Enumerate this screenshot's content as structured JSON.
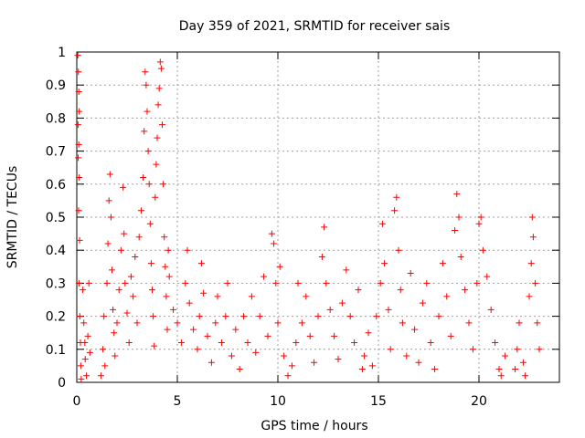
{
  "chart_data": {
    "type": "scatter",
    "title": "Day 359 of 2021, SRMTID for receiver sais",
    "xlabel": "GPS time / hours",
    "ylabel": "SRMTID / TECUs",
    "xlim": [
      0,
      24
    ],
    "ylim": [
      0,
      1
    ],
    "xticks": [
      0,
      5,
      10,
      15,
      20
    ],
    "xtick_labels": [
      "0",
      "5",
      "10",
      "15",
      "20"
    ],
    "yticks": [
      0,
      0.1,
      0.2,
      0.3,
      0.4,
      0.5,
      0.6,
      0.7,
      0.8,
      0.9,
      1
    ],
    "ytick_labels": [
      "0",
      "0.1",
      "0.2",
      "0.3",
      "0.4",
      "0.5",
      "0.6",
      "0.7",
      "0.8",
      "0.9",
      "1"
    ],
    "grid": true,
    "marker": "+",
    "color": "#ff0000",
    "series": [
      {
        "name": "SRMTID",
        "points": [
          [
            0.05,
            0.99
          ],
          [
            0.08,
            0.94
          ],
          [
            0.1,
            0.88
          ],
          [
            0.12,
            0.82
          ],
          [
            0.06,
            0.78
          ],
          [
            0.1,
            0.72
          ],
          [
            0.07,
            0.68
          ],
          [
            0.12,
            0.62
          ],
          [
            0.09,
            0.52
          ],
          [
            0.14,
            0.43
          ],
          [
            0.11,
            0.3
          ],
          [
            0.15,
            0.2
          ],
          [
            0.18,
            0.12
          ],
          [
            0.2,
            0.05
          ],
          [
            0.22,
            0.01
          ],
          [
            0.3,
            0.28
          ],
          [
            0.35,
            0.18
          ],
          [
            0.4,
            0.12
          ],
          [
            0.42,
            0.07
          ],
          [
            0.48,
            0.02
          ],
          [
            0.55,
            0.14
          ],
          [
            0.6,
            0.3
          ],
          [
            0.65,
            0.09
          ],
          [
            1.2,
            0.02
          ],
          [
            1.3,
            0.1
          ],
          [
            1.35,
            0.2
          ],
          [
            1.4,
            0.05
          ],
          [
            1.5,
            0.3
          ],
          [
            1.55,
            0.42
          ],
          [
            1.6,
            0.55
          ],
          [
            1.65,
            0.63
          ],
          [
            1.7,
            0.5
          ],
          [
            1.75,
            0.34
          ],
          [
            1.8,
            0.22
          ],
          [
            1.85,
            0.15
          ],
          [
            1.9,
            0.08
          ],
          [
            2.0,
            0.18
          ],
          [
            2.1,
            0.28
          ],
          [
            2.2,
            0.4
          ],
          [
            2.3,
            0.59
          ],
          [
            2.35,
            0.45
          ],
          [
            2.4,
            0.3
          ],
          [
            2.5,
            0.21
          ],
          [
            2.6,
            0.12
          ],
          [
            2.7,
            0.32
          ],
          [
            2.8,
            0.26
          ],
          [
            2.9,
            0.38
          ],
          [
            3.0,
            0.18
          ],
          [
            3.1,
            0.44
          ],
          [
            3.2,
            0.52
          ],
          [
            3.3,
            0.62
          ],
          [
            3.35,
            0.76
          ],
          [
            3.4,
            0.94
          ],
          [
            3.45,
            0.9
          ],
          [
            3.5,
            0.82
          ],
          [
            3.55,
            0.7
          ],
          [
            3.6,
            0.6
          ],
          [
            3.65,
            0.48
          ],
          [
            3.7,
            0.36
          ],
          [
            3.75,
            0.28
          ],
          [
            3.8,
            0.2
          ],
          [
            3.85,
            0.11
          ],
          [
            3.9,
            0.56
          ],
          [
            3.95,
            0.66
          ],
          [
            4.0,
            0.74
          ],
          [
            4.05,
            0.84
          ],
          [
            4.1,
            0.89
          ],
          [
            4.15,
            0.97
          ],
          [
            4.2,
            0.95
          ],
          [
            4.25,
            0.78
          ],
          [
            4.3,
            0.6
          ],
          [
            4.35,
            0.44
          ],
          [
            4.4,
            0.35
          ],
          [
            4.45,
            0.26
          ],
          [
            4.5,
            0.16
          ],
          [
            4.55,
            0.4
          ],
          [
            4.6,
            0.32
          ],
          [
            4.8,
            0.22
          ],
          [
            5.0,
            0.18
          ],
          [
            5.2,
            0.12
          ],
          [
            5.4,
            0.3
          ],
          [
            5.5,
            0.4
          ],
          [
            5.6,
            0.24
          ],
          [
            5.8,
            0.16
          ],
          [
            6.0,
            0.1
          ],
          [
            6.1,
            0.2
          ],
          [
            6.2,
            0.36
          ],
          [
            6.3,
            0.27
          ],
          [
            6.5,
            0.14
          ],
          [
            6.7,
            0.06
          ],
          [
            6.9,
            0.18
          ],
          [
            7.0,
            0.26
          ],
          [
            7.2,
            0.12
          ],
          [
            7.4,
            0.2
          ],
          [
            7.5,
            0.3
          ],
          [
            7.7,
            0.08
          ],
          [
            7.9,
            0.16
          ],
          [
            8.1,
            0.04
          ],
          [
            8.3,
            0.2
          ],
          [
            8.5,
            0.12
          ],
          [
            8.7,
            0.26
          ],
          [
            8.9,
            0.09
          ],
          [
            9.1,
            0.2
          ],
          [
            9.3,
            0.32
          ],
          [
            9.5,
            0.14
          ],
          [
            9.7,
            0.45
          ],
          [
            9.8,
            0.42
          ],
          [
            9.9,
            0.3
          ],
          [
            10.0,
            0.18
          ],
          [
            10.1,
            0.35
          ],
          [
            10.3,
            0.08
          ],
          [
            10.5,
            0.02
          ],
          [
            10.7,
            0.05
          ],
          [
            10.9,
            0.12
          ],
          [
            11.0,
            0.3
          ],
          [
            11.2,
            0.18
          ],
          [
            11.4,
            0.26
          ],
          [
            11.6,
            0.14
          ],
          [
            11.8,
            0.06
          ],
          [
            12.0,
            0.2
          ],
          [
            12.2,
            0.38
          ],
          [
            12.3,
            0.47
          ],
          [
            12.4,
            0.3
          ],
          [
            12.6,
            0.22
          ],
          [
            12.8,
            0.14
          ],
          [
            13.0,
            0.07
          ],
          [
            13.2,
            0.24
          ],
          [
            13.4,
            0.34
          ],
          [
            13.6,
            0.2
          ],
          [
            13.8,
            0.12
          ],
          [
            14.0,
            0.28
          ],
          [
            14.2,
            0.04
          ],
          [
            14.3,
            0.08
          ],
          [
            14.5,
            0.15
          ],
          [
            14.7,
            0.05
          ],
          [
            14.9,
            0.2
          ],
          [
            15.1,
            0.3
          ],
          [
            15.2,
            0.48
          ],
          [
            15.3,
            0.36
          ],
          [
            15.5,
            0.22
          ],
          [
            15.6,
            0.1
          ],
          [
            15.8,
            0.52
          ],
          [
            15.9,
            0.56
          ],
          [
            16.0,
            0.4
          ],
          [
            16.1,
            0.28
          ],
          [
            16.2,
            0.18
          ],
          [
            16.4,
            0.08
          ],
          [
            16.6,
            0.33
          ],
          [
            16.8,
            0.16
          ],
          [
            17.0,
            0.06
          ],
          [
            17.2,
            0.24
          ],
          [
            17.4,
            0.3
          ],
          [
            17.6,
            0.12
          ],
          [
            17.8,
            0.04
          ],
          [
            18.0,
            0.2
          ],
          [
            18.2,
            0.36
          ],
          [
            18.4,
            0.26
          ],
          [
            18.6,
            0.14
          ],
          [
            18.8,
            0.46
          ],
          [
            18.9,
            0.57
          ],
          [
            19.0,
            0.5
          ],
          [
            19.1,
            0.38
          ],
          [
            19.3,
            0.28
          ],
          [
            19.5,
            0.18
          ],
          [
            19.7,
            0.1
          ],
          [
            19.9,
            0.3
          ],
          [
            20.0,
            0.48
          ],
          [
            20.1,
            0.5
          ],
          [
            20.2,
            0.4
          ],
          [
            20.4,
            0.32
          ],
          [
            20.6,
            0.22
          ],
          [
            20.8,
            0.12
          ],
          [
            21.0,
            0.04
          ],
          [
            21.1,
            0.02
          ],
          [
            21.3,
            0.08
          ],
          [
            21.8,
            0.04
          ],
          [
            21.9,
            0.1
          ],
          [
            22.0,
            0.18
          ],
          [
            22.2,
            0.06
          ],
          [
            22.3,
            0.02
          ],
          [
            22.5,
            0.26
          ],
          [
            22.6,
            0.36
          ],
          [
            22.65,
            0.5
          ],
          [
            22.7,
            0.44
          ],
          [
            22.8,
            0.3
          ],
          [
            22.9,
            0.18
          ],
          [
            23.0,
            0.1
          ]
        ]
      }
    ]
  }
}
